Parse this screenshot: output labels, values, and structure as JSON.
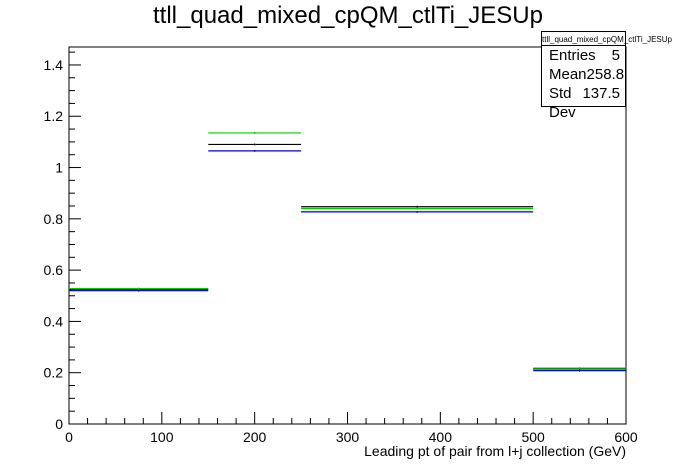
{
  "chart_data": {
    "type": "histogram-step",
    "title": "ttll_quad_mixed_cpQM_ctlTi_JESUp",
    "xlabel": "Leading pt of pair from l+j collection (GeV)",
    "ylabel": "",
    "xlim": [
      0,
      600
    ],
    "ylim": [
      0,
      1.47
    ],
    "xticks": [
      0,
      100,
      200,
      300,
      400,
      500,
      600
    ],
    "yticks": [
      0,
      0.2,
      0.4,
      0.6,
      0.8,
      1,
      1.2,
      1.4
    ],
    "bin_edges": [
      0,
      150,
      250,
      500,
      600
    ],
    "series": [
      {
        "color": "#000000",
        "values": [
          0.525,
          1.09,
          0.847,
          0.215
        ]
      },
      {
        "color": "#0000cc",
        "values": [
          0.52,
          1.065,
          0.827,
          0.208
        ]
      },
      {
        "color": "#00cc00",
        "values": [
          0.528,
          1.135,
          0.84,
          0.218
        ]
      }
    ],
    "legend": "none",
    "grid": false,
    "stats": {
      "title": "ttll_quad_mixed_cpQM_ctlTi_JESUp",
      "rows": [
        {
          "label": "Entries",
          "value": "5"
        },
        {
          "label": "Mean",
          "value": "258.8"
        },
        {
          "label": "Std Dev",
          "value": "137.5"
        }
      ]
    }
  }
}
